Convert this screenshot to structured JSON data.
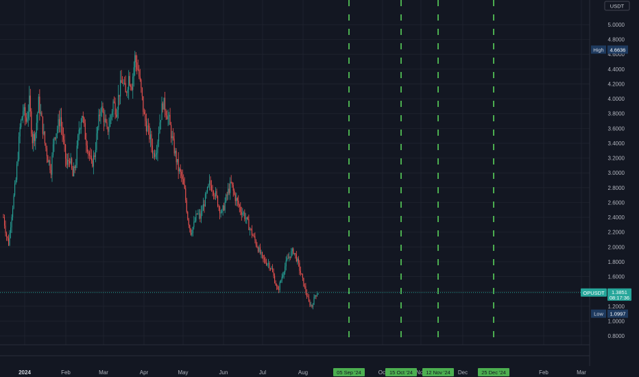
{
  "chart_data": {
    "type": "candlestick",
    "symbol": "OPUSDT",
    "currency": "USDT",
    "ylim": [
      0.7,
      5.0
    ],
    "yticks": [
      "0.8000",
      "1.0000",
      "1.2000",
      "1.4000",
      "1.6000",
      "1.8000",
      "2.0000",
      "2.2000",
      "2.4000",
      "2.6000",
      "2.8000",
      "3.0000",
      "3.2000",
      "3.4000",
      "3.6000",
      "3.8000",
      "4.0000",
      "4.2000",
      "4.4000",
      "4.6000",
      "4.8000",
      "5.0000"
    ],
    "x_labels": [
      {
        "label": "2024",
        "bold": true
      },
      {
        "label": "Feb"
      },
      {
        "label": "Mar"
      },
      {
        "label": "Apr"
      },
      {
        "label": "May"
      },
      {
        "label": "Jun"
      },
      {
        "label": "Jul"
      },
      {
        "label": "Aug"
      },
      {
        "label": "Oct"
      },
      {
        "label": "Nov"
      },
      {
        "label": "Dec"
      },
      {
        "label": "Feb"
      },
      {
        "label": "Mar"
      }
    ],
    "markers": [
      {
        "label": "05 Sep '24",
        "color": "#4caf50"
      },
      {
        "label": "15 Oct '24",
        "color": "#4caf50"
      },
      {
        "label": "12 Nov '24",
        "color": "#4caf50"
      },
      {
        "label": "25 Dec '24",
        "color": "#4caf50"
      }
    ],
    "high": {
      "label": "High",
      "value": "4.6636"
    },
    "low": {
      "label": "Low",
      "value": "1.0997"
    },
    "last_price": {
      "symbol": "OPUSDT",
      "value": "1.3851",
      "countdown": "08:17:36"
    },
    "up_color": "#26a69a",
    "down_color": "#ef5350",
    "price_path": [
      [
        0,
        2.4
      ],
      [
        3,
        2.15
      ],
      [
        5,
        2.05
      ],
      [
        8,
        2.45
      ],
      [
        12,
        2.9
      ],
      [
        16,
        3.6
      ],
      [
        19,
        3.85
      ],
      [
        22,
        3.7
      ],
      [
        25,
        3.95
      ],
      [
        28,
        3.45
      ],
      [
        31,
        3.55
      ],
      [
        34,
        3.95
      ],
      [
        37,
        3.7
      ],
      [
        40,
        3.4
      ],
      [
        43,
        3.2
      ],
      [
        46,
        3.05
      ],
      [
        49,
        3.5
      ],
      [
        52,
        3.6
      ],
      [
        55,
        3.75
      ],
      [
        58,
        3.4
      ],
      [
        61,
        3.1
      ],
      [
        64,
        3.2
      ],
      [
        67,
        2.95
      ],
      [
        70,
        3.15
      ],
      [
        73,
        3.6
      ],
      [
        76,
        3.8
      ],
      [
        79,
        3.5
      ],
      [
        82,
        3.3
      ],
      [
        85,
        3.1
      ],
      [
        88,
        3.25
      ],
      [
        91,
        3.6
      ],
      [
        94,
        3.9
      ],
      [
        97,
        3.75
      ],
      [
        100,
        3.55
      ],
      [
        103,
        3.7
      ],
      [
        106,
        3.95
      ],
      [
        109,
        3.85
      ],
      [
        112,
        4.1
      ],
      [
        115,
        4.25
      ],
      [
        118,
        4.05
      ],
      [
        121,
        4.3
      ],
      [
        124,
        4.2
      ],
      [
        127,
        4.55
      ],
      [
        130,
        4.4
      ],
      [
        133,
        4.1
      ],
      [
        136,
        3.75
      ],
      [
        139,
        3.6
      ],
      [
        142,
        3.45
      ],
      [
        145,
        3.25
      ],
      [
        148,
        3.35
      ],
      [
        151,
        3.7
      ],
      [
        154,
        3.95
      ],
      [
        157,
        3.85
      ],
      [
        160,
        3.7
      ],
      [
        163,
        3.45
      ],
      [
        166,
        3.25
      ],
      [
        169,
        3.05
      ],
      [
        172,
        2.95
      ],
      [
        175,
        2.75
      ],
      [
        178,
        2.4
      ],
      [
        181,
        2.2
      ],
      [
        184,
        2.3
      ],
      [
        187,
        2.45
      ],
      [
        190,
        2.4
      ],
      [
        193,
        2.55
      ],
      [
        196,
        2.7
      ],
      [
        199,
        2.85
      ],
      [
        202,
        2.8
      ],
      [
        205,
        2.7
      ],
      [
        208,
        2.55
      ],
      [
        211,
        2.45
      ],
      [
        214,
        2.6
      ],
      [
        217,
        2.75
      ],
      [
        220,
        2.85
      ],
      [
        223,
        2.7
      ],
      [
        226,
        2.6
      ],
      [
        229,
        2.5
      ],
      [
        232,
        2.45
      ],
      [
        235,
        2.35
      ],
      [
        238,
        2.25
      ],
      [
        241,
        2.15
      ],
      [
        244,
        2.05
      ],
      [
        247,
        1.95
      ],
      [
        250,
        1.85
      ],
      [
        253,
        1.8
      ],
      [
        256,
        1.78
      ],
      [
        259,
        1.7
      ],
      [
        262,
        1.55
      ],
      [
        265,
        1.4
      ],
      [
        268,
        1.55
      ],
      [
        271,
        1.7
      ],
      [
        274,
        1.82
      ],
      [
        277,
        1.9
      ],
      [
        280,
        1.95
      ],
      [
        283,
        1.85
      ],
      [
        286,
        1.7
      ],
      [
        289,
        1.55
      ],
      [
        292,
        1.4
      ],
      [
        295,
        1.25
      ],
      [
        298,
        1.2
      ],
      [
        301,
        1.35
      ],
      [
        304,
        1.385
      ]
    ]
  }
}
